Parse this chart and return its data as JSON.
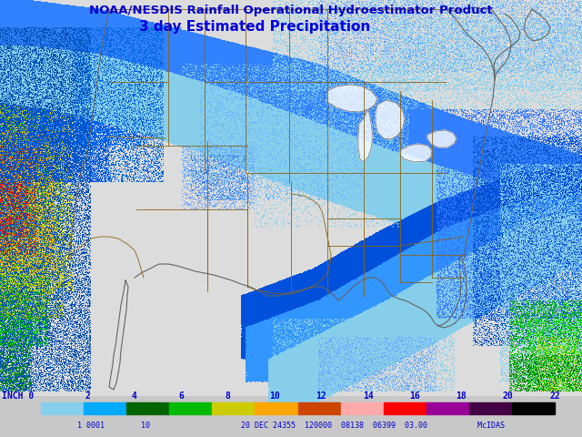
{
  "title_line1": "NOAA/NESDIS Rainfall Operational Hydroestimator Product",
  "title_line2": "3 day Estimated Precipitation",
  "title_color_rgb": [
    0,
    0,
    200
  ],
  "bg_color_rgb": [
    200,
    200,
    200
  ],
  "bg_color_hex": "#c8c8c8",
  "map_bg_rgb": [
    220,
    220,
    220
  ],
  "coastline_color_rgb": [
    100,
    100,
    100
  ],
  "state_border_color_rgb": [
    139,
    100,
    20
  ],
  "colorbar_colors": [
    "#87ceeb",
    "#00aaff",
    "#006400",
    "#00bb00",
    "#cccc00",
    "#ffa500",
    "#cc4400",
    "#ffaaaa",
    "#ff0000",
    "#990099",
    "#440044",
    "#000000"
  ],
  "colorbar_label_values": [
    0,
    2,
    4,
    6,
    8,
    10,
    12,
    14,
    16,
    18,
    20,
    22
  ],
  "bottom_text": "1 0001        10                    20 DEC 24355  120000  08138  06399  03.00           McIDAS",
  "rain_colors": {
    "light_blue": [
      135,
      206,
      235
    ],
    "blue": [
      0,
      100,
      255
    ],
    "dark_blue": [
      0,
      0,
      180
    ],
    "cyan": [
      0,
      200,
      255
    ],
    "green": [
      0,
      180,
      0
    ],
    "dark_green": [
      0,
      100,
      0
    ],
    "yellow": [
      200,
      200,
      0
    ],
    "orange": [
      255,
      165,
      0
    ],
    "red": [
      220,
      60,
      0
    ]
  }
}
